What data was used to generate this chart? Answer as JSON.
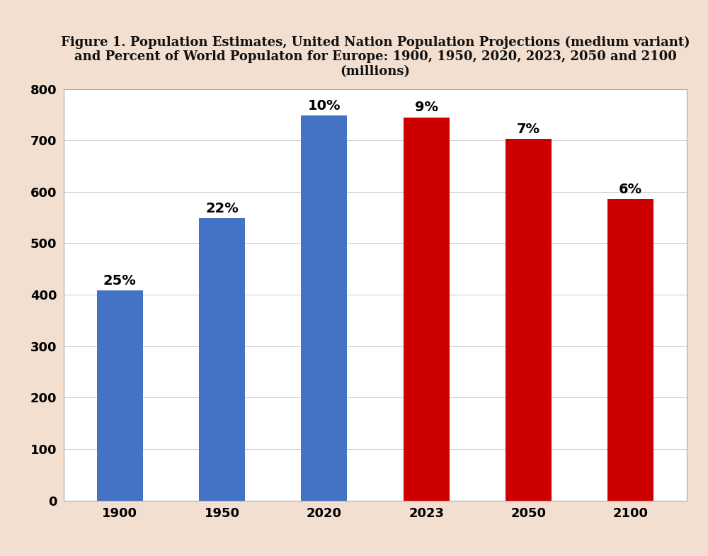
{
  "categories": [
    "1900",
    "1950",
    "2020",
    "2023",
    "2050",
    "2100"
  ],
  "values": [
    408,
    549,
    748,
    745,
    703,
    586
  ],
  "percentages": [
    "25%",
    "22%",
    "10%",
    "9%",
    "7%",
    "6%"
  ],
  "bar_colors": [
    "#4472C4",
    "#4472C4",
    "#4472C4",
    "#CC0000",
    "#CC0000",
    "#CC0000"
  ],
  "title_line1": "Figure 1. Population Estimates, United Nation Population Projections (medium variant)",
  "title_line2": "and Percent of World Populaton for Europe: 1900, 1950, 2020, 2023, 2050 and 2100",
  "title_line3": "(millions)",
  "ylim": [
    0,
    800
  ],
  "yticks": [
    0,
    100,
    200,
    300,
    400,
    500,
    600,
    700,
    800
  ],
  "background_color": "#f2dfd0",
  "plot_background": "#ffffff",
  "tick_fontsize": 13,
  "title_fontsize": 13,
  "annotation_fontsize": 14,
  "bar_width": 0.45
}
